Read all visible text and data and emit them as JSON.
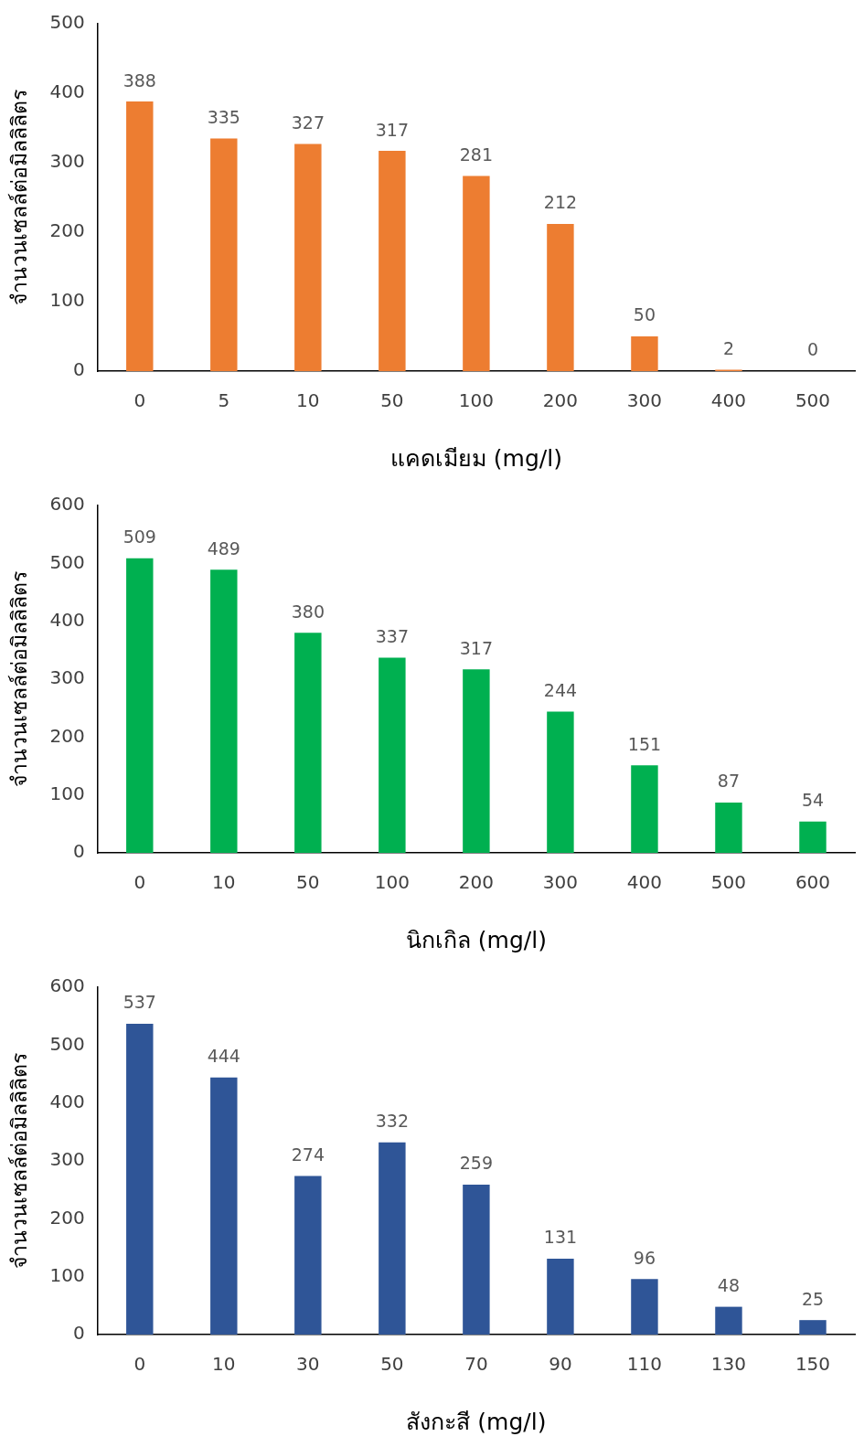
{
  "chart_data": [
    {
      "type": "bar",
      "xlabel": "แคดเมียม (mg/l)",
      "ylabel": "จำนวนเซลล์ต่อมิลลิลิตร",
      "categories": [
        "0",
        "5",
        "10",
        "50",
        "100",
        "200",
        "300",
        "400",
        "500"
      ],
      "values": [
        388,
        335,
        327,
        317,
        281,
        212,
        50,
        2,
        0
      ],
      "color": "#ed7d31",
      "ylim": [
        0,
        500
      ],
      "yticks": [
        0,
        100,
        200,
        300,
        400,
        500
      ],
      "grid": false,
      "legend": false,
      "data_labels": true
    },
    {
      "type": "bar",
      "xlabel": "นิกเกิล (mg/l)",
      "ylabel": "จำนวนเซลล์ต่อมิลลิลิตร",
      "categories": [
        "0",
        "10",
        "50",
        "100",
        "200",
        "300",
        "400",
        "500",
        "600"
      ],
      "values": [
        509,
        489,
        380,
        337,
        317,
        244,
        151,
        87,
        54
      ],
      "color": "#00b050",
      "ylim": [
        0,
        600
      ],
      "yticks": [
        0,
        100,
        200,
        300,
        400,
        500,
        600
      ],
      "grid": false,
      "legend": false,
      "data_labels": true
    },
    {
      "type": "bar",
      "xlabel": "สังกะสี (mg/l)",
      "ylabel": "จำนวนเซลล์ต่อมิลลิลิตร",
      "categories": [
        "0",
        "10",
        "30",
        "50",
        "70",
        "90",
        "110",
        "130",
        "150"
      ],
      "values": [
        537,
        444,
        274,
        332,
        259,
        131,
        96,
        48,
        25
      ],
      "color": "#2f5597",
      "ylim": [
        0,
        600
      ],
      "yticks": [
        0,
        100,
        200,
        300,
        400,
        500,
        600
      ],
      "grid": false,
      "legend": false,
      "data_labels": true
    }
  ]
}
